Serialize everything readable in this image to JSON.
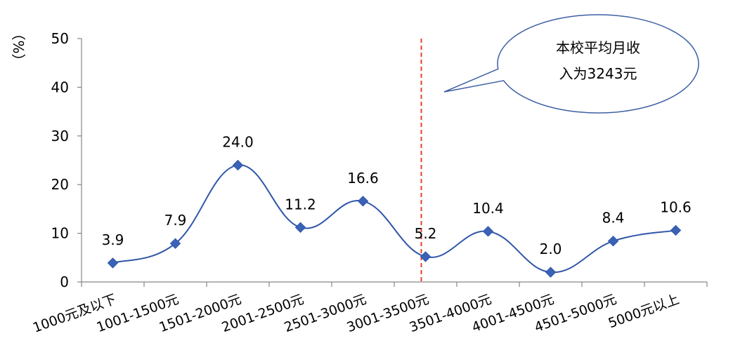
{
  "chart_data": {
    "type": "line",
    "title": "",
    "xlabel": "",
    "ylabel": "（%）",
    "ylim": [
      0,
      50
    ],
    "yticks": [
      0,
      10,
      20,
      30,
      40,
      50
    ],
    "grid": false,
    "categories": [
      "1000元及以下",
      "1001-1500元",
      "1501-2000元",
      "2001-2500元",
      "2501-3000元",
      "3001-3500元",
      "3501-4000元",
      "4001-4500元",
      "4501-5000元",
      "5000元以上"
    ],
    "series": [
      {
        "values": [
          3.9,
          7.9,
          24.0,
          11.2,
          16.6,
          5.2,
          10.4,
          2.0,
          8.4,
          10.6
        ],
        "labels": [
          "3.9",
          "7.9",
          "24.0",
          "11.2",
          "16.6",
          "5.2",
          "10.4",
          "2.0",
          "8.4",
          "10.6"
        ]
      }
    ],
    "reference_line": {
      "value": 3243,
      "color": "#e8402a",
      "style": "dashed"
    },
    "annotation": {
      "lines": [
        "本校平均月收",
        "入为3243元"
      ]
    },
    "colors": {
      "series": "#2f56a8",
      "marker": "#3a62b6",
      "callout_border": "#3c5fa3",
      "axis": "#868686"
    }
  }
}
